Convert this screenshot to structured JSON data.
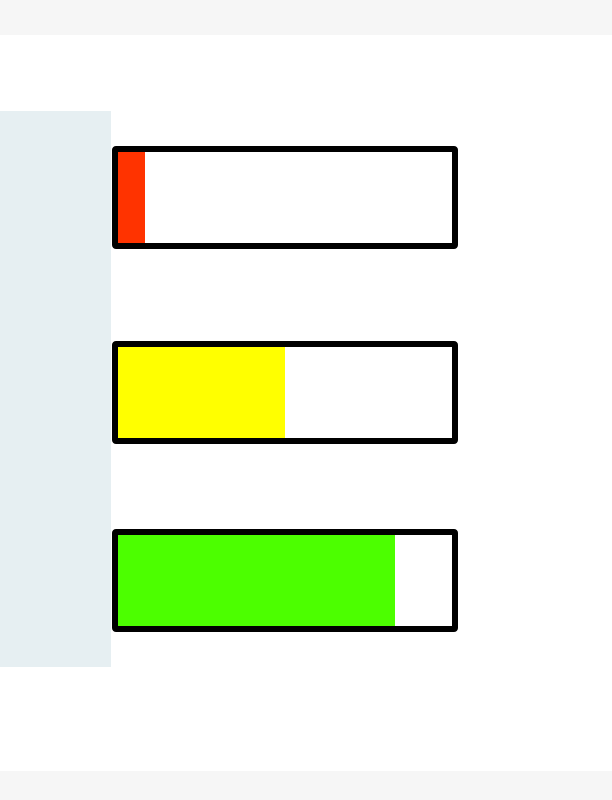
{
  "progress_bars": [
    {
      "value_percent": 8,
      "color": "#ff3300"
    },
    {
      "value_percent": 50,
      "color": "#ffff00"
    },
    {
      "value_percent": 83,
      "color": "#4cff00"
    }
  ],
  "colors": {
    "sidebar": "#e6eff2",
    "border": "#000000",
    "chrome": "#f6f6f6"
  }
}
